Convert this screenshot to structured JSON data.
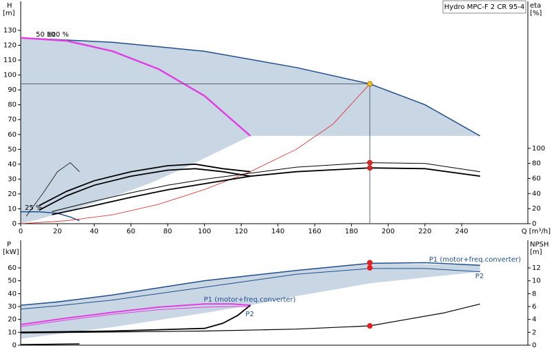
{
  "chart_data": [
    {
      "type": "line",
      "title": "Hydro MPC-F 2 CR 95-4",
      "y_label": "H",
      "y_unit": "[m]",
      "y2_label": "eta",
      "y2_unit": "[%]",
      "x_label": "Q [m³/h]",
      "annotations": [
        "50 Hz",
        "100 %",
        "25 %"
      ],
      "xlim": [
        0,
        276
      ],
      "ylim": [
        0,
        149.5
      ],
      "y2lim": [
        0,
        295
      ],
      "xticks": [
        0,
        20,
        40,
        60,
        80,
        100,
        120,
        140,
        160,
        180,
        200,
        220,
        240
      ],
      "yticks": [
        0,
        10,
        20,
        30,
        40,
        50,
        60,
        70,
        80,
        90,
        100,
        110,
        120,
        130
      ],
      "y2ticks": [
        0,
        20,
        40,
        60,
        80,
        100
      ],
      "band": {
        "color": "#c9d7e5",
        "x": [
          0,
          50,
          100,
          150,
          190,
          220,
          250,
          250,
          125,
          110,
          90,
          70,
          50,
          30,
          10,
          0
        ],
        "values": [
          125,
          122,
          116,
          105,
          94,
          80,
          59,
          59,
          59,
          50,
          38,
          27,
          18,
          10,
          3,
          0
        ]
      },
      "series": [
        {
          "color": "#1f4e8c",
          "width": 1.5,
          "x": [
            0,
            50,
            100,
            150,
            190,
            220,
            250
          ],
          "values": [
            125,
            122,
            116,
            105,
            94,
            80,
            59
          ]
        },
        {
          "color": "#e040e0",
          "width": 2.5,
          "x": [
            0,
            25,
            50,
            75,
            100,
            125
          ],
          "values": [
            125,
            123,
            116,
            104,
            86,
            59
          ]
        },
        {
          "color": "#1f4e8c",
          "width": 1.5,
          "x": [
            0,
            10,
            20,
            27,
            32
          ],
          "values": [
            8,
            8,
            7,
            4.5,
            2
          ]
        },
        {
          "color": "#e02020",
          "width": 0.8,
          "x": [
            0,
            25,
            50,
            75,
            100,
            125,
            150,
            170,
            190
          ],
          "values": [
            0,
            2,
            6,
            13,
            23,
            35,
            50,
            67,
            94
          ]
        },
        {
          "color": "#000000",
          "width": 1,
          "axis": "y2",
          "x": [
            17,
            40,
            60,
            80,
            100,
            125,
            150,
            190,
            220,
            250
          ],
          "values": [
            16,
            30,
            41,
            51,
            59,
            67,
            75,
            81,
            80,
            69
          ]
        },
        {
          "color": "#000000",
          "width": 1.8,
          "axis": "y2",
          "x": [
            17,
            40,
            60,
            80,
            100,
            125,
            150,
            190,
            220,
            250
          ],
          "values": [
            12,
            24,
            35,
            45,
            53,
            63,
            69,
            74,
            73,
            63
          ]
        },
        {
          "color": "#000000",
          "width": 1.8,
          "axis": "y2",
          "x": [
            10,
            25,
            40,
            60,
            80,
            95,
            110,
            125
          ],
          "values": [
            24,
            43,
            57,
            69,
            77,
            79,
            73,
            69
          ]
        },
        {
          "color": "#000000",
          "width": 1.8,
          "axis": "y2",
          "x": [
            10,
            25,
            40,
            60,
            80,
            95,
            110,
            125
          ],
          "values": [
            18,
            37,
            51,
            63,
            71,
            73,
            69,
            63
          ]
        },
        {
          "color": "#000000",
          "width": 0.8,
          "axis": "y2",
          "x": [
            3,
            12,
            20,
            27,
            32
          ],
          "values": [
            10,
            40,
            69,
            81,
            69
          ]
        },
        {
          "color": "#e02020",
          "marker": true,
          "axis": "y2",
          "x": [
            190,
            190
          ],
          "values": [
            81,
            74
          ]
        },
        {
          "color": "#f0c030",
          "marker": true,
          "crosshair": true,
          "x": [
            190
          ],
          "values": [
            94
          ]
        }
      ]
    },
    {
      "type": "line",
      "y_label": "P",
      "y_unit": "[kW]",
      "y2_label": "NPSH",
      "y2_unit": "[m]",
      "xlim": [
        0,
        276
      ],
      "ylim": [
        0,
        81.4
      ],
      "y2lim": [
        0,
        16.3
      ],
      "yticks": [
        0,
        10,
        20,
        30,
        40,
        50,
        60
      ],
      "y2ticks": [
        0,
        2,
        4,
        6,
        8,
        10,
        12
      ],
      "band": {
        "color": "#c9d7e5",
        "x": [
          0,
          50,
          100,
          150,
          190,
          250,
          250,
          190,
          150,
          125,
          100,
          50,
          0
        ],
        "values": [
          31,
          39,
          50,
          58,
          63.5,
          62,
          57,
          48,
          38,
          31,
          25,
          14,
          5
        ]
      },
      "series": [
        {
          "name": "P1 (motor+freq.converter)",
          "color": "#1f4e8c",
          "width": 1.5,
          "x": [
            0,
            20,
            50,
            100,
            150,
            190,
            220,
            250
          ],
          "values": [
            31,
            33.5,
            39,
            50,
            58,
            63.5,
            64,
            62
          ]
        },
        {
          "name": "P2",
          "color": "#1f4e8c",
          "width": 1,
          "x": [
            0,
            20,
            50,
            100,
            150,
            190,
            220,
            250
          ],
          "values": [
            28,
            30.5,
            35,
            45,
            55,
            59.5,
            59.5,
            57
          ]
        },
        {
          "name": "P1 (motor+freq.converter)",
          "color": "#e040e0",
          "width": 2,
          "x": [
            0,
            25,
            50,
            75,
            100,
            115,
            125
          ],
          "values": [
            16,
            21,
            25.5,
            29.5,
            32,
            32,
            31
          ]
        },
        {
          "name": "P2",
          "color": "#e040e0",
          "width": 1,
          "x": [
            0,
            25,
            50,
            75,
            100,
            115,
            125
          ],
          "values": [
            14.5,
            19.5,
            24,
            27.5,
            29.5,
            30,
            30
          ]
        },
        {
          "color": "#000000",
          "width": 1.8,
          "x": [
            0,
            50,
            100,
            110,
            118,
            125
          ],
          "values": [
            10,
            11,
            13,
            17,
            23,
            31
          ]
        },
        {
          "color": "#000000",
          "width": 1.5,
          "x": [
            0,
            32
          ],
          "values": [
            0.5,
            1
          ]
        },
        {
          "color": "#000000",
          "width": 1.2,
          "axis": "y2",
          "x": [
            0,
            100,
            150,
            190,
            210,
            230,
            250
          ],
          "values": [
            1.9,
            2.2,
            2.5,
            3,
            4,
            5,
            6.4
          ]
        },
        {
          "color": "#e02020",
          "marker": true,
          "x": [
            190,
            190
          ],
          "values": [
            64,
            60
          ]
        },
        {
          "color": "#e02020",
          "marker": true,
          "axis": "y2",
          "x": [
            190
          ],
          "values": [
            3
          ]
        }
      ]
    }
  ]
}
